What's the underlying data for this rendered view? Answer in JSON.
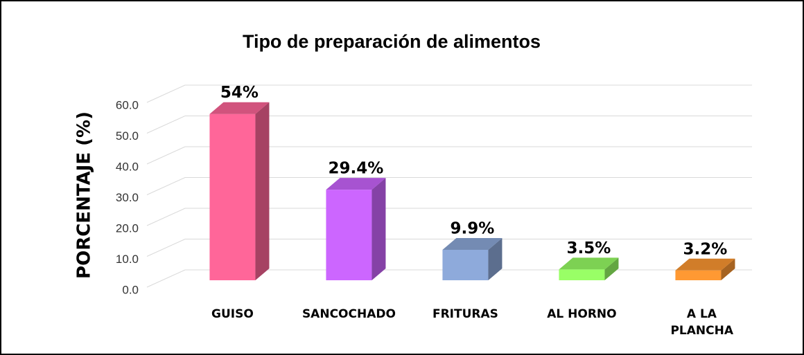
{
  "chart_data": {
    "type": "bar3d",
    "title": "Tipo de preparación de alimentos",
    "y_axis_label": "PORCENTAJE (%)",
    "categories": [
      "GUISO",
      "SANCOCHADO",
      "FRITURAS",
      "AL HORNO",
      "A LA PLANCHA"
    ],
    "values": [
      54,
      29.4,
      9.9,
      3.5,
      3.2
    ],
    "value_labels": [
      "54%",
      "29.4%",
      "9.9%",
      "3.5%",
      "3.2%"
    ],
    "colors": [
      "#ff6699",
      "#cc66ff",
      "#8eaadb",
      "#99ff66",
      "#ff9933"
    ],
    "ylim": [
      0,
      60
    ],
    "yticks": [
      {
        "value": 0,
        "label": "0.0"
      },
      {
        "value": 10,
        "label": "10.0"
      },
      {
        "value": 20,
        "label": "20.0"
      },
      {
        "value": 30,
        "label": "30.0"
      },
      {
        "value": 40,
        "label": "40.0"
      },
      {
        "value": 50,
        "label": "50.0"
      },
      {
        "value": 60,
        "label": "60.0"
      }
    ],
    "grid": true
  }
}
